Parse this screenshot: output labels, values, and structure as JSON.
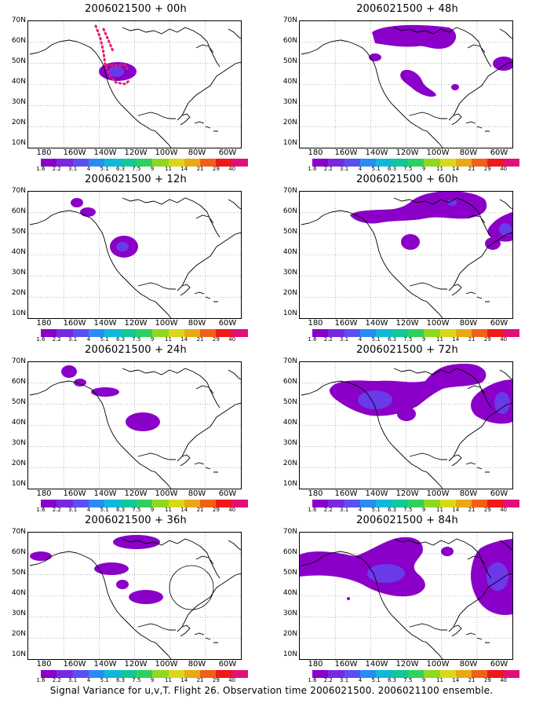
{
  "panels": [
    {
      "title": "2006021500 + 00h"
    },
    {
      "title": "2006021500 + 48h"
    },
    {
      "title": "2006021500 + 12h"
    },
    {
      "title": "2006021500 + 60h"
    },
    {
      "title": "2006021500 + 24h"
    },
    {
      "title": "2006021500 + 72h"
    },
    {
      "title": "2006021500 + 36h"
    },
    {
      "title": "2006021500 + 84h"
    }
  ],
  "axes": {
    "lat": [
      "70N",
      "60N",
      "50N",
      "40N",
      "30N",
      "20N",
      "10N"
    ],
    "lon": [
      "180",
      "160W",
      "140W",
      "120W",
      "100W",
      "80W",
      "60W"
    ]
  },
  "colorbar": {
    "labels": [
      "1.6",
      "2.2",
      "3.1",
      "4",
      "5.1",
      "6.3",
      "7.5",
      "9",
      "11",
      "14",
      "21",
      "29",
      "40"
    ],
    "colors": [
      "#8a00c8",
      "#7a28e0",
      "#5a50f0",
      "#2a8cf0",
      "#10b8d8",
      "#10c898",
      "#30d060",
      "#90d820",
      "#d8d818",
      "#e8a818",
      "#f06018",
      "#f01818",
      "#e01078"
    ]
  },
  "footer": "Signal Variance for u,v,T. Flight 26. Observation time 2006021500. 2006021100 ensemble."
}
